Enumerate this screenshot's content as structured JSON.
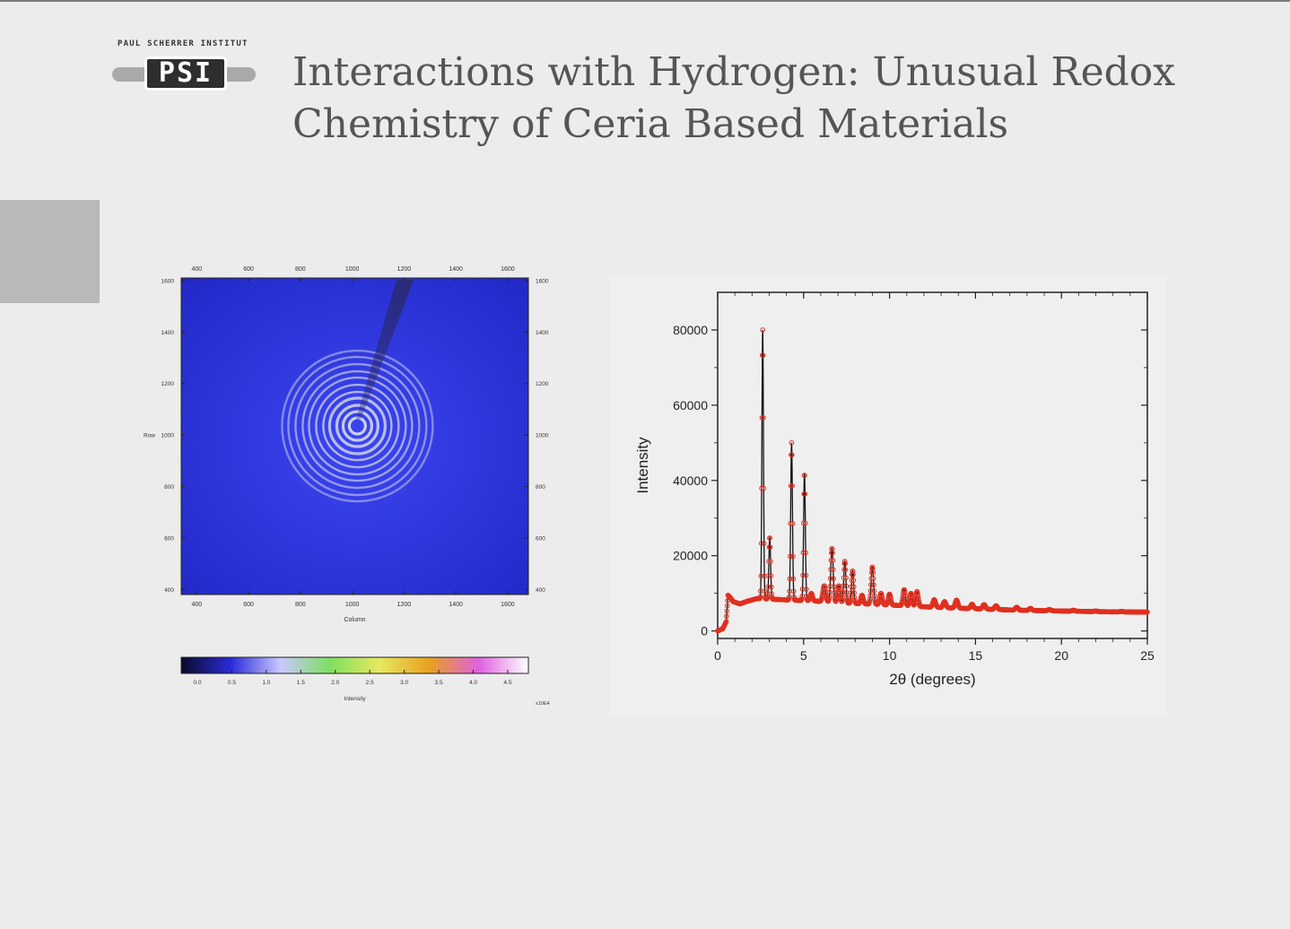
{
  "slide": {
    "title": "Interactions with Hydrogen: Unusual Redox Chemistry of Ceria Based Materials",
    "logo": {
      "institute": "PAUL SCHERRER INSTITUT",
      "mark": "PSI"
    },
    "background": "#ececec"
  },
  "chart_data": [
    {
      "type": "heatmap",
      "title": "",
      "xlabel": "Column",
      "ylabel": "Row",
      "x_ticks": [
        "400",
        "600",
        "800",
        "1000",
        "1200",
        "1400",
        "1600"
      ],
      "y_ticks": [
        "1600",
        "1400",
        "1200",
        "1000",
        "800",
        "600",
        "400"
      ],
      "xlim": [
        340,
        1680
      ],
      "ylim": [
        380,
        1610
      ],
      "ring_center": [
        1020,
        1035
      ],
      "colorbar": {
        "label": "Intensity",
        "ticks": [
          "0.0",
          "0.5",
          "1.0",
          "1.5",
          "2.0",
          "2.5",
          "3.0",
          "3.5",
          "4.0",
          "4.5"
        ],
        "multiplier": "x10E4",
        "colors": [
          "#0a0a2a",
          "#2a2ad8",
          "#c8c8ff",
          "#7fe060",
          "#e8e860",
          "#e8a020",
          "#e060e0",
          "#ffffff"
        ]
      },
      "colors": {
        "background": "#2a31d8",
        "rings": "#e8e8e8",
        "beamstop": "#2a2a6a"
      }
    },
    {
      "type": "line",
      "title": "",
      "xlabel": "2θ (degrees)",
      "ylabel": "Intensity",
      "xlim": [
        0,
        25
      ],
      "ylim": [
        -2000,
        90000
      ],
      "x_ticks": [
        "0",
        "5",
        "10",
        "15",
        "20",
        "25"
      ],
      "y_ticks": [
        "0",
        "20000",
        "40000",
        "60000",
        "80000"
      ],
      "background_points": [
        [
          0,
          0
        ],
        [
          0.3,
          600
        ],
        [
          0.5,
          2500
        ],
        [
          0.6,
          9500
        ],
        [
          0.75,
          8800
        ],
        [
          0.9,
          7800
        ],
        [
          1.3,
          7200
        ],
        [
          1.8,
          8000
        ],
        [
          2.3,
          8600
        ],
        [
          3.8,
          8300
        ],
        [
          5.5,
          8000
        ],
        [
          7.5,
          7400
        ],
        [
          10,
          6900
        ],
        [
          12.5,
          6300
        ],
        [
          15,
          5900
        ],
        [
          17.5,
          5500
        ],
        [
          20,
          5300
        ],
        [
          22.5,
          5100
        ],
        [
          25,
          5000
        ]
      ],
      "peaks": [
        {
          "x": 2.62,
          "y": 80000,
          "width": 0.045
        },
        {
          "x": 3.03,
          "y": 25000,
          "width": 0.05
        },
        {
          "x": 4.3,
          "y": 50000,
          "width": 0.05
        },
        {
          "x": 5.05,
          "y": 42000,
          "width": 0.05
        },
        {
          "x": 5.45,
          "y": 10000,
          "width": 0.07
        },
        {
          "x": 6.2,
          "y": 12000,
          "width": 0.08
        },
        {
          "x": 6.65,
          "y": 22000,
          "width": 0.07
        },
        {
          "x": 7.05,
          "y": 12000,
          "width": 0.07
        },
        {
          "x": 7.4,
          "y": 18500,
          "width": 0.06
        },
        {
          "x": 7.85,
          "y": 16000,
          "width": 0.06
        },
        {
          "x": 8.4,
          "y": 9500,
          "width": 0.07
        },
        {
          "x": 9.0,
          "y": 17000,
          "width": 0.07
        },
        {
          "x": 9.5,
          "y": 10000,
          "width": 0.07
        },
        {
          "x": 10.0,
          "y": 9800,
          "width": 0.07
        },
        {
          "x": 10.85,
          "y": 11000,
          "width": 0.07
        },
        {
          "x": 11.25,
          "y": 10000,
          "width": 0.07
        },
        {
          "x": 11.6,
          "y": 10500,
          "width": 0.07
        },
        {
          "x": 12.6,
          "y": 8300,
          "width": 0.08
        },
        {
          "x": 13.2,
          "y": 7800,
          "width": 0.08
        },
        {
          "x": 13.9,
          "y": 8200,
          "width": 0.08
        },
        {
          "x": 14.8,
          "y": 7100,
          "width": 0.08
        },
        {
          "x": 15.5,
          "y": 7000,
          "width": 0.08
        },
        {
          "x": 16.2,
          "y": 6700,
          "width": 0.08
        },
        {
          "x": 17.4,
          "y": 6300,
          "width": 0.08
        },
        {
          "x": 18.2,
          "y": 6000,
          "width": 0.08
        },
        {
          "x": 19.3,
          "y": 5700,
          "width": 0.09
        },
        {
          "x": 20.7,
          "y": 5500,
          "width": 0.09
        },
        {
          "x": 22.0,
          "y": 5300,
          "width": 0.09
        },
        {
          "x": 23.5,
          "y": 5200,
          "width": 0.09
        }
      ],
      "colors": {
        "line": "#111111",
        "markers": "#e03020"
      }
    }
  ]
}
